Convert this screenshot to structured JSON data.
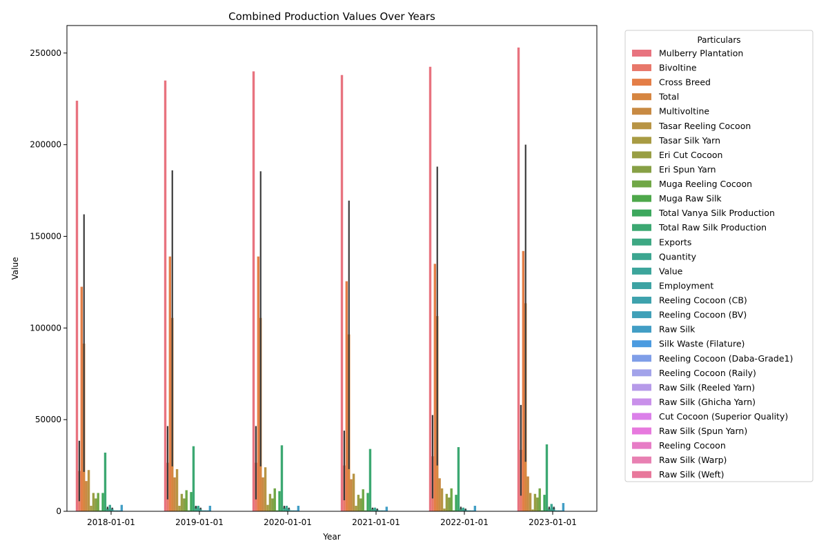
{
  "chart_data": {
    "type": "bar",
    "title": "Combined Production Values Over Years",
    "xlabel": "Year",
    "ylabel": "Value",
    "ylim": [
      0,
      265000
    ],
    "yticks": [
      0,
      50000,
      100000,
      150000,
      200000,
      250000
    ],
    "grid": false,
    "legend": {
      "title": "Particulars",
      "placement": "outside right"
    },
    "categories": [
      "2018-01-01",
      "2019-01-01",
      "2020-01-01",
      "2021-01-01",
      "2022-01-01",
      "2023-01-01"
    ],
    "series": [
      {
        "name": "Mulberry Plantation",
        "color": "#e8737f",
        "values": [
          224000,
          235000,
          240000,
          238000,
          242500,
          253000
        ]
      },
      {
        "name": "Bivoltine",
        "color": "#e8776a",
        "values": [
          22000,
          26500,
          26500,
          25000,
          30000,
          33500
        ],
        "err": [
          [
            5500,
            38500
          ],
          [
            6500,
            46500
          ],
          [
            6500,
            46500
          ],
          [
            6000,
            44000
          ],
          [
            7000,
            52500
          ],
          [
            8500,
            58000
          ]
        ]
      },
      {
        "name": "Cross Breed",
        "color": "#e47e47",
        "values": [
          122500,
          139000,
          139000,
          125500,
          135000,
          142000
        ]
      },
      {
        "name": "Total",
        "color": "#d68540",
        "values": [
          91500,
          105500,
          105500,
          96500,
          106500,
          113500
        ],
        "err": [
          [
            21500,
            162000
          ],
          [
            24500,
            186000
          ],
          [
            24500,
            185500
          ],
          [
            23000,
            169500
          ],
          [
            25000,
            188000
          ],
          [
            27000,
            200000
          ]
        ]
      },
      {
        "name": "Multivoltine",
        "color": "#c88a43",
        "values": [
          16500,
          18500,
          18500,
          17500,
          18000,
          19000
        ]
      },
      {
        "name": "Tasar Reeling Cocoon",
        "color": "#b89444",
        "values": [
          22500,
          23000,
          24000,
          20500,
          12500,
          10000
        ]
      },
      {
        "name": "Tasar Silk Yarn",
        "color": "#a89b43",
        "values": [
          3000,
          3000,
          3500,
          3000,
          1500,
          1000
        ]
      },
      {
        "name": "Eri Cut Cocoon",
        "color": "#989e43",
        "values": [
          10000,
          9500,
          9500,
          9000,
          9500,
          9500
        ]
      },
      {
        "name": "Eri Spun Yarn",
        "color": "#87a045",
        "values": [
          7000,
          7000,
          7000,
          7000,
          7500,
          7500
        ]
      },
      {
        "name": "Muga Reeling Cocoon",
        "color": "#70a746",
        "values": [
          10000,
          11500,
          12500,
          12000,
          12500,
          12500
        ]
      },
      {
        "name": "Muga Raw Silk",
        "color": "#4ea84b",
        "values": [
          500,
          500,
          500,
          500,
          500,
          500
        ]
      },
      {
        "name": "Total Vanya Silk Production",
        "color": "#3ca85d",
        "values": [
          10000,
          10500,
          11000,
          10000,
          9000,
          9000
        ]
      },
      {
        "name": "Total Raw Silk Production",
        "color": "#3ca872",
        "values": [
          32000,
          35500,
          36000,
          34000,
          35000,
          36500
        ]
      },
      {
        "name": "Exports",
        "color": "#3da883",
        "values": [
          1500,
          2500,
          2000,
          1500,
          1500,
          1500
        ],
        "err": [
          [
            1000,
            2500
          ],
          [
            1500,
            3000
          ],
          [
            1500,
            3000
          ],
          [
            1000,
            2000
          ],
          [
            1000,
            2500
          ],
          [
            1000,
            2500
          ]
        ]
      },
      {
        "name": "Quantity",
        "color": "#3ca690",
        "values": [
          3500,
          3000,
          3000,
          2000,
          2000,
          4000
        ]
      },
      {
        "name": "Value",
        "color": "#3ca59b",
        "values": [
          1500,
          1500,
          1500,
          1000,
          1000,
          2000
        ],
        "err": [
          [
            1000,
            2000
          ],
          [
            1000,
            2000
          ],
          [
            1000,
            2000
          ],
          [
            500,
            1500
          ],
          [
            500,
            1500
          ],
          [
            1000,
            2500
          ]
        ]
      },
      {
        "name": "Employment",
        "color": "#3da3a3",
        "values": [
          500,
          500,
          500,
          500,
          500,
          500
        ]
      },
      {
        "name": "Reeling Cocoon (CB)",
        "color": "#3ea2ad",
        "values": [
          500,
          500,
          500,
          500,
          500,
          500
        ]
      },
      {
        "name": "Reeling Cocoon (BV)",
        "color": "#40a0b8",
        "values": [
          500,
          500,
          500,
          500,
          500,
          500
        ]
      },
      {
        "name": "Raw Silk",
        "color": "#429ec5",
        "values": [
          3500,
          3000,
          3000,
          2500,
          3000,
          4500
        ]
      },
      {
        "name": "Silk Waste (Filature)",
        "color": "#4b9be0",
        "values": [
          0,
          0,
          0,
          0,
          0,
          0
        ]
      },
      {
        "name": "Reeling Cocoon (Daba-Grade1)",
        "color": "#7f9ee8",
        "values": [
          0,
          0,
          0,
          0,
          0,
          0
        ]
      },
      {
        "name": "Reeling Cocoon (Raily)",
        "color": "#a2a3ea",
        "values": [
          0,
          0,
          0,
          0,
          0,
          0
        ]
      },
      {
        "name": "Raw Silk (Reeled Yarn)",
        "color": "#b69ae9",
        "values": [
          0,
          0,
          0,
          0,
          0,
          0
        ]
      },
      {
        "name": "Raw Silk (Ghicha Yarn)",
        "color": "#c990ea",
        "values": [
          0,
          0,
          0,
          0,
          0,
          0
        ]
      },
      {
        "name": "Cut Cocoon (Superior Quality)",
        "color": "#db80e9",
        "values": [
          0,
          0,
          0,
          0,
          0,
          0
        ]
      },
      {
        "name": "Raw Silk (Spun Yarn)",
        "color": "#e779de",
        "values": [
          0,
          0,
          0,
          0,
          0,
          0
        ]
      },
      {
        "name": "Reeling Cocoon",
        "color": "#e77cc6",
        "values": [
          0,
          0,
          0,
          0,
          0,
          0
        ]
      },
      {
        "name": "Raw Silk (Warp)",
        "color": "#e880b2",
        "values": [
          0,
          0,
          0,
          0,
          0,
          0
        ]
      },
      {
        "name": "Raw Silk (Weft)",
        "color": "#e8789b",
        "values": [
          0,
          0,
          0,
          0,
          0,
          0
        ]
      }
    ]
  }
}
